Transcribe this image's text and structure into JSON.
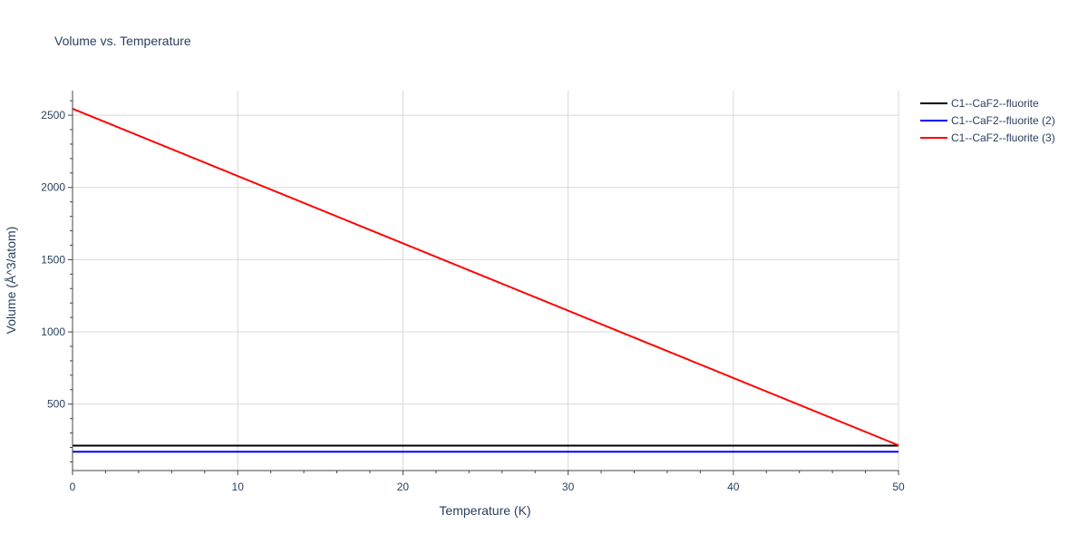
{
  "chart_data": {
    "type": "line",
    "title": "Volume vs. Temperature",
    "xlabel": "Temperature (K)",
    "ylabel": "Volume (Å^3/atom)",
    "xlim": [
      0,
      50
    ],
    "ylim": [
      40,
      2670
    ],
    "xticks": [
      0,
      10,
      20,
      30,
      40,
      50
    ],
    "yticks": [
      500,
      1000,
      1500,
      2000,
      2500
    ],
    "grid": true,
    "legend": "top-right outside",
    "series": [
      {
        "name": "C1--CaF2--fluorite",
        "color": "#000000",
        "x": [
          0,
          50
        ],
        "y": [
          213,
          213
        ]
      },
      {
        "name": "C1--CaF2--fluorite (2)",
        "color": "#0000ff",
        "x": [
          0,
          50
        ],
        "y": [
          170,
          170
        ]
      },
      {
        "name": "C1--CaF2--fluorite (3)",
        "color": "#ff0000",
        "x": [
          0,
          50
        ],
        "y": [
          2545,
          215
        ]
      }
    ]
  }
}
